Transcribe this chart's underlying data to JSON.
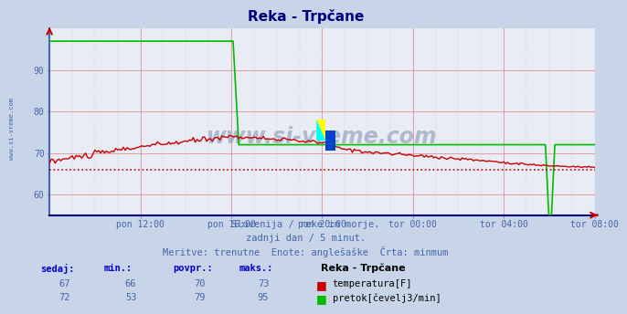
{
  "title": "Reka - Trpčane",
  "title_color": "#000080",
  "fig_bg_color": "#c8d4e8",
  "plot_bg_color": "#e8ecf4",
  "xlim": [
    0,
    288
  ],
  "ylim": [
    55,
    100
  ],
  "yticks": [
    60,
    70,
    80,
    90
  ],
  "xlabel_ticks": [
    48,
    96,
    144,
    192,
    240,
    288
  ],
  "xlabel_labels": [
    "pon 12:00",
    "pon 16:00",
    "pon 20:00",
    "tor 00:00",
    "tor 04:00",
    "tor 08:00"
  ],
  "watermark": "www.si-vreme.com",
  "watermark_color": "#8090b0",
  "left_label": "www.si-vreme.com",
  "subtitle1": "Slovenija / reke in morje.",
  "subtitle2": "zadnji dan / 5 minut.",
  "subtitle3": "Meritve: trenutne  Enote: anglešaške  Črta: minmum",
  "subtitle_color": "#4466aa",
  "footer_header_color": "#0000cc",
  "temp_color": "#cc0000",
  "flow_color": "#00bb00",
  "min_line_color": "#cc0000",
  "temp_min": 66,
  "temp_max": 73,
  "temp_avg": 70,
  "temp_now": 67,
  "flow_min": 53,
  "flow_max": 95,
  "flow_avg": 79,
  "flow_now": 72,
  "table_labels": [
    "sedaj:",
    "min.:",
    "povpr.:",
    "maks.:"
  ],
  "station_name": "Reka - Trpčane",
  "legend_temp": "temperatura[F]",
  "legend_flow": "pretok[čevelj3/min]"
}
